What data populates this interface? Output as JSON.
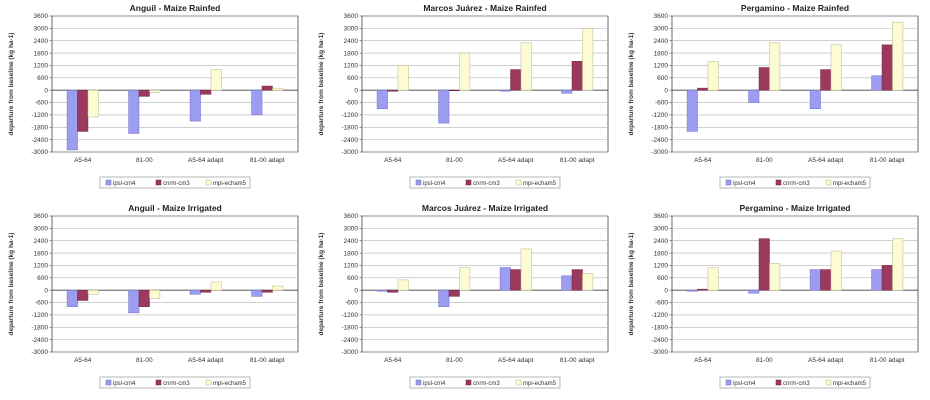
{
  "colors": {
    "series": [
      "#9c9cf0",
      "#9b3a5e",
      "#fdfbd2"
    ],
    "series_stroke": [
      "#6f6fc8",
      "#6e2240",
      "#b9b48c"
    ],
    "grid": "#b5b5b5",
    "axis": "#444444"
  },
  "chart_data": [
    {
      "type": "bar",
      "title": "Anguil - Maize Rainfed",
      "ylabel": "departure from baseline (kg ha-1)",
      "ylim": [
        -3000,
        3600
      ],
      "yticks": [
        -3000,
        -2400,
        -1800,
        -1200,
        -600,
        0,
        600,
        1200,
        1800,
        2400,
        3000,
        3600
      ],
      "grid": true,
      "legend_position": "bottom",
      "categories": [
        "A5-64",
        "81-00",
        "A5-64 adapt",
        "81-00 adapt"
      ],
      "series": [
        {
          "name": "ipsl-cm4",
          "values": [
            -2900,
            -2100,
            -1500,
            -1200
          ]
        },
        {
          "name": "cnrm-cm3",
          "values": [
            -2000,
            -300,
            -200,
            200
          ]
        },
        {
          "name": "mpi-echam5",
          "values": [
            -1300,
            -100,
            1000,
            100
          ]
        }
      ]
    },
    {
      "type": "bar",
      "title": "Marcos Juárez - Maize Rainfed",
      "ylabel": "departure from baseline (kg ha-1)",
      "ylim": [
        -3000,
        3600
      ],
      "yticks": [
        -3000,
        -2400,
        -1800,
        -1200,
        -600,
        0,
        600,
        1200,
        1800,
        2400,
        3000,
        3600
      ],
      "grid": true,
      "legend_position": "bottom",
      "categories": [
        "A5-64",
        "81-00",
        "A5-64 adapt",
        "81-00 adapt"
      ],
      "series": [
        {
          "name": "ipsl-cm4",
          "values": [
            -900,
            -1600,
            -50,
            -150
          ]
        },
        {
          "name": "cnrm-cm3",
          "values": [
            -50,
            0,
            1000,
            1400
          ]
        },
        {
          "name": "mpi-echam5",
          "values": [
            1200,
            1800,
            2300,
            3000
          ]
        }
      ]
    },
    {
      "type": "bar",
      "title": "Pergamino - Maize Rainfed",
      "ylabel": "departure from baseline (kg ha-1)",
      "ylim": [
        -3000,
        3600
      ],
      "yticks": [
        -3000,
        -2400,
        -1800,
        -1200,
        -600,
        0,
        600,
        1200,
        1800,
        2400,
        3000,
        3600
      ],
      "grid": true,
      "legend_position": "bottom",
      "categories": [
        "A5-64",
        "81-00",
        "A5-64 adapt",
        "81-00 adapt"
      ],
      "series": [
        {
          "name": "ipsl-cm4",
          "values": [
            -2000,
            -600,
            -900,
            700
          ]
        },
        {
          "name": "cnrm-cm3",
          "values": [
            100,
            1100,
            1000,
            2200
          ]
        },
        {
          "name": "mpi-echam5",
          "values": [
            1400,
            2300,
            2200,
            3300
          ]
        }
      ]
    },
    {
      "type": "bar",
      "title": "Anguil - Maize Irrigated",
      "ylabel": "departure from baseline (kg ha-1)",
      "ylim": [
        -3000,
        3600
      ],
      "yticks": [
        -3000,
        -2400,
        -1800,
        -1200,
        -600,
        0,
        600,
        1200,
        1800,
        2400,
        3000,
        3600
      ],
      "grid": true,
      "legend_position": "bottom",
      "categories": [
        "A5-64",
        "81-00",
        "A5-64 adapt",
        "81-00 adapt"
      ],
      "series": [
        {
          "name": "ipsl-cm4",
          "values": [
            -800,
            -1100,
            -200,
            -300
          ]
        },
        {
          "name": "cnrm-cm3",
          "values": [
            -500,
            -800,
            -100,
            -100
          ]
        },
        {
          "name": "mpi-echam5",
          "values": [
            -200,
            -400,
            400,
            200
          ]
        }
      ]
    },
    {
      "type": "bar",
      "title": "Marcos Juárez - Maize Irrigated",
      "ylabel": "departure from baseline (kg ha-1)",
      "ylim": [
        -3000,
        3600
      ],
      "yticks": [
        -3000,
        -2400,
        -1800,
        -1200,
        -600,
        0,
        600,
        1200,
        1800,
        2400,
        3000,
        3600
      ],
      "grid": true,
      "legend_position": "bottom",
      "categories": [
        "A5-64",
        "81-00",
        "A5-64 adapt",
        "81-00 adapt"
      ],
      "series": [
        {
          "name": "ipsl-cm4",
          "values": [
            -50,
            -800,
            1100,
            700
          ]
        },
        {
          "name": "cnrm-cm3",
          "values": [
            -100,
            -300,
            1000,
            1000
          ]
        },
        {
          "name": "mpi-echam5",
          "values": [
            500,
            1100,
            2000,
            800
          ]
        }
      ]
    },
    {
      "type": "bar",
      "title": "Pergamino - Maize Irrigated",
      "ylabel": "departure from baseline (kg ha-1)",
      "ylim": [
        -3000,
        3600
      ],
      "yticks": [
        -3000,
        -2400,
        -1800,
        -1200,
        -600,
        0,
        600,
        1200,
        1800,
        2400,
        3000,
        3600
      ],
      "grid": true,
      "legend_position": "bottom",
      "categories": [
        "A5-64",
        "81-00",
        "A5-64 adapt",
        "81-00 adapt"
      ],
      "series": [
        {
          "name": "ipsl-cm4",
          "values": [
            -50,
            -150,
            1000,
            1000
          ]
        },
        {
          "name": "cnrm-cm3",
          "values": [
            50,
            2500,
            1000,
            1200
          ]
        },
        {
          "name": "mpi-echam5",
          "values": [
            1100,
            1300,
            1900,
            2500
          ]
        }
      ]
    }
  ]
}
